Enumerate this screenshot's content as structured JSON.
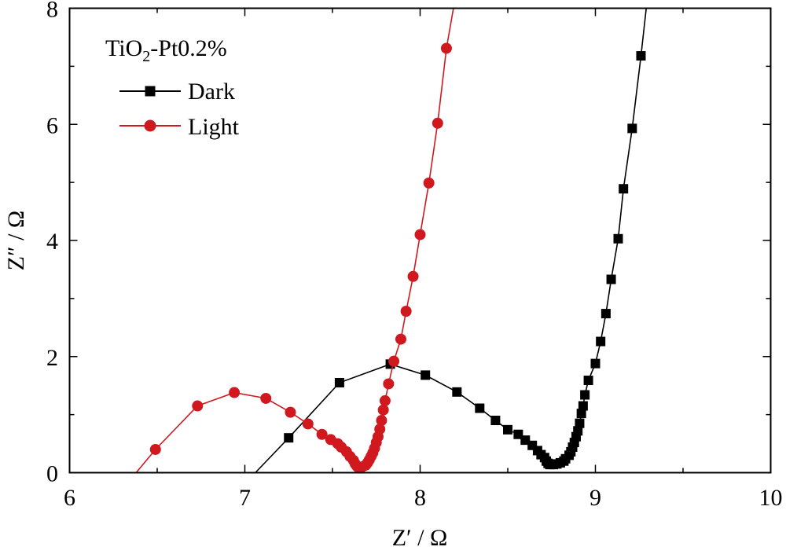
{
  "chart_data": {
    "type": "scatter",
    "title": "",
    "xlabel": "Z′ / Ω",
    "ylabel": "Z″ / Ω",
    "xlim": [
      6,
      10
    ],
    "ylim": [
      0,
      8
    ],
    "x_ticks": [
      "6",
      "7",
      "8",
      "9",
      "10"
    ],
    "y_ticks": [
      "0",
      "2",
      "4",
      "6",
      "8"
    ],
    "grid": false,
    "legend": {
      "title_parts": [
        "TiO",
        "2",
        "-Pt0.2%"
      ],
      "placement": "top-left",
      "entries": [
        "Dark",
        "Light"
      ]
    },
    "series": [
      {
        "name": "Dark",
        "color": "#000000",
        "marker": "square",
        "line_start": [
          7.06,
          0
        ],
        "line_end": [
          9.29,
          8.0
        ],
        "points": [
          [
            7.25,
            0.6
          ],
          [
            7.54,
            1.55
          ],
          [
            7.83,
            1.87
          ],
          [
            8.03,
            1.68
          ],
          [
            8.21,
            1.39
          ],
          [
            8.34,
            1.11
          ],
          [
            8.43,
            0.9
          ],
          [
            8.5,
            0.74
          ],
          [
            8.56,
            0.66
          ],
          [
            8.6,
            0.56
          ],
          [
            8.64,
            0.47
          ],
          [
            8.67,
            0.38
          ],
          [
            8.69,
            0.31
          ],
          [
            8.71,
            0.26
          ],
          [
            8.72,
            0.2
          ],
          [
            8.73,
            0.16
          ],
          [
            8.74,
            0.14
          ],
          [
            8.76,
            0.14
          ],
          [
            8.78,
            0.15
          ],
          [
            8.8,
            0.17
          ],
          [
            8.82,
            0.2
          ],
          [
            8.83,
            0.24
          ],
          [
            8.85,
            0.3
          ],
          [
            8.86,
            0.36
          ],
          [
            8.87,
            0.44
          ],
          [
            8.88,
            0.52
          ],
          [
            8.89,
            0.62
          ],
          [
            8.9,
            0.72
          ],
          [
            8.91,
            0.85
          ],
          [
            8.92,
            1.02
          ],
          [
            8.93,
            1.15
          ],
          [
            8.94,
            1.34
          ],
          [
            8.96,
            1.59
          ],
          [
            9.0,
            1.88
          ],
          [
            9.03,
            2.26
          ],
          [
            9.06,
            2.74
          ],
          [
            9.09,
            3.33
          ],
          [
            9.13,
            4.03
          ],
          [
            9.16,
            4.89
          ],
          [
            9.21,
            5.93
          ],
          [
            9.26,
            7.18
          ]
        ]
      },
      {
        "name": "Light",
        "color": "#d0191f",
        "marker": "circle",
        "line_start": [
          6.38,
          0
        ],
        "line_end": [
          8.19,
          8.0
        ],
        "points": [
          [
            6.49,
            0.4
          ],
          [
            6.73,
            1.15
          ],
          [
            6.94,
            1.38
          ],
          [
            7.12,
            1.28
          ],
          [
            7.26,
            1.04
          ],
          [
            7.36,
            0.84
          ],
          [
            7.44,
            0.66
          ],
          [
            7.49,
            0.57
          ],
          [
            7.53,
            0.5
          ],
          [
            7.55,
            0.44
          ],
          [
            7.58,
            0.36
          ],
          [
            7.6,
            0.28
          ],
          [
            7.62,
            0.21
          ],
          [
            7.63,
            0.15
          ],
          [
            7.64,
            0.11
          ],
          [
            7.65,
            0.08
          ],
          [
            7.66,
            0.08
          ],
          [
            7.67,
            0.1
          ],
          [
            7.69,
            0.13
          ],
          [
            7.7,
            0.17
          ],
          [
            7.71,
            0.22
          ],
          [
            7.72,
            0.28
          ],
          [
            7.73,
            0.34
          ],
          [
            7.74,
            0.42
          ],
          [
            7.75,
            0.52
          ],
          [
            7.76,
            0.62
          ],
          [
            7.77,
            0.75
          ],
          [
            7.78,
            0.9
          ],
          [
            7.79,
            1.08
          ],
          [
            7.8,
            1.24
          ],
          [
            7.82,
            1.53
          ],
          [
            7.85,
            1.92
          ],
          [
            7.89,
            2.3
          ],
          [
            7.92,
            2.78
          ],
          [
            7.96,
            3.38
          ],
          [
            8.0,
            4.1
          ],
          [
            8.05,
            4.99
          ],
          [
            8.1,
            6.02
          ],
          [
            8.15,
            7.31
          ]
        ]
      }
    ]
  }
}
